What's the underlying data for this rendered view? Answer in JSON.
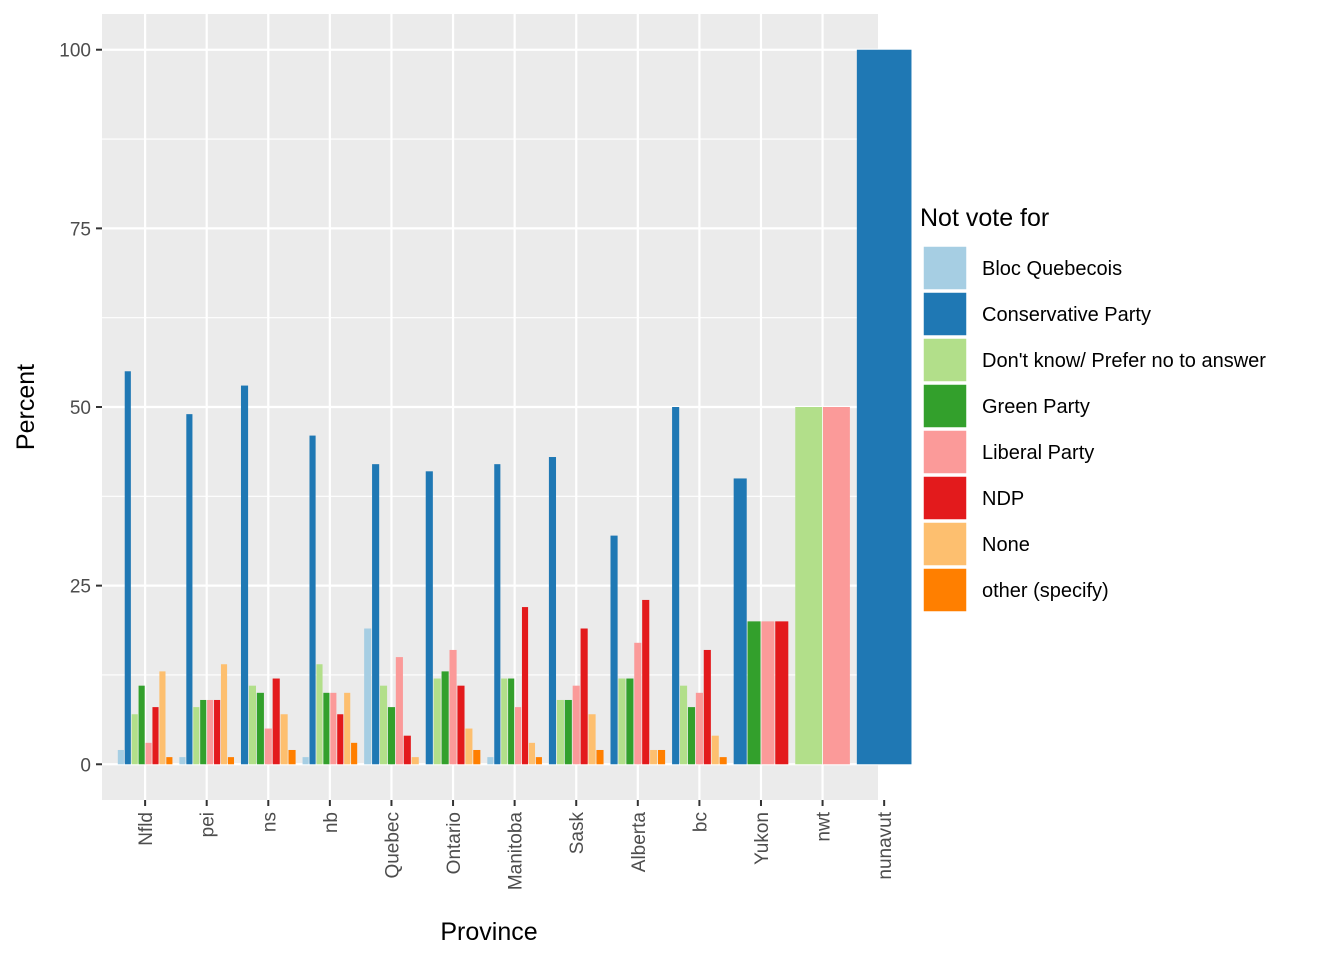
{
  "chart_data": {
    "type": "bar",
    "title": "",
    "xlabel": "Province",
    "ylabel": "Percent",
    "ylim": [
      -5,
      105
    ],
    "yticks": [
      0,
      25,
      50,
      75,
      100
    ],
    "grid": true,
    "legend_position": "right",
    "legend_title": "Not vote for",
    "categories": [
      "Nfld",
      "pei",
      "ns",
      "nb",
      "Quebec",
      "Ontario",
      "Manitoba",
      "Sask",
      "Alberta",
      "bc",
      "Yukon",
      "nwt",
      "nunavut"
    ],
    "series": [
      {
        "name": "Bloc Quebecois",
        "color": "#a6cee3",
        "values": [
          2,
          1,
          null,
          1,
          19,
          null,
          1,
          null,
          null,
          null,
          null,
          null,
          null
        ]
      },
      {
        "name": "Conservative Party",
        "color": "#1f78b4",
        "values": [
          55,
          49,
          53,
          46,
          42,
          41,
          42,
          43,
          32,
          50,
          40,
          null,
          100
        ]
      },
      {
        "name": "Don't know/ Prefer no to answer",
        "color": "#b2df8a",
        "values": [
          7,
          8,
          11,
          14,
          11,
          12,
          12,
          9,
          12,
          11,
          null,
          50,
          null
        ]
      },
      {
        "name": "Green Party",
        "color": "#33a02c",
        "values": [
          11,
          9,
          10,
          10,
          8,
          13,
          12,
          9,
          12,
          8,
          20,
          null,
          null
        ]
      },
      {
        "name": "Liberal Party",
        "color": "#fb9a99",
        "values": [
          3,
          9,
          5,
          10,
          15,
          16,
          8,
          11,
          17,
          10,
          20,
          50,
          null
        ]
      },
      {
        "name": "NDP",
        "color": "#e31a1c",
        "values": [
          8,
          9,
          12,
          7,
          4,
          11,
          22,
          19,
          23,
          16,
          20,
          null,
          null
        ]
      },
      {
        "name": "None",
        "color": "#fdbf6f",
        "values": [
          13,
          14,
          7,
          10,
          1,
          5,
          3,
          7,
          2,
          4,
          null,
          null,
          null
        ]
      },
      {
        "name": "other (specify)",
        "color": "#ff7f00",
        "values": [
          1,
          1,
          2,
          3,
          null,
          2,
          1,
          2,
          2,
          1,
          null,
          null,
          null
        ]
      }
    ]
  }
}
